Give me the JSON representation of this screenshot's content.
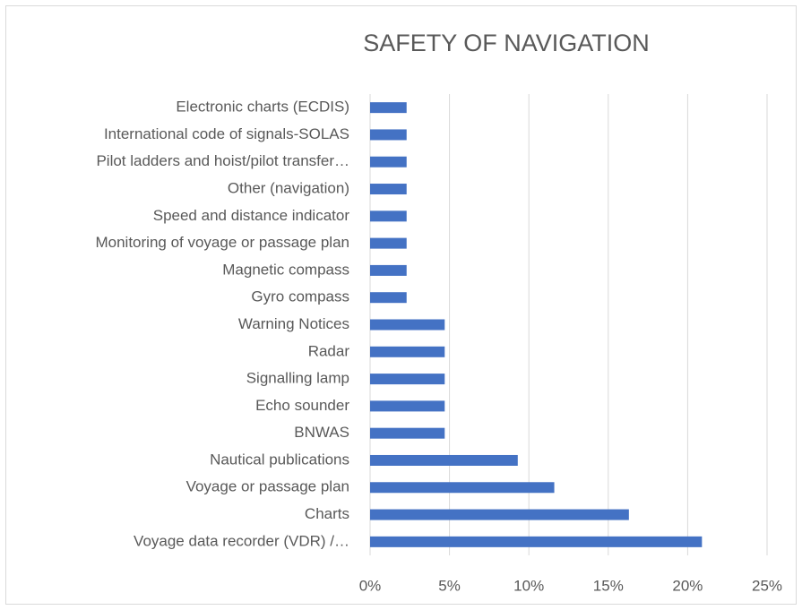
{
  "chart_data": {
    "type": "hbar",
    "title": "SAFETY OF NAVIGATION",
    "categories": [
      "Electronic charts (ECDIS)",
      "International code of signals-SOLAS",
      "Pilot ladders and hoist/pilot transfer…",
      "Other (navigation)",
      "Speed and distance indicator",
      "Monitoring of voyage or passage plan",
      "Magnetic compass",
      "Gyro compass",
      "Warning Notices",
      "Radar",
      "Signalling lamp",
      "Echo sounder",
      "BNWAS",
      "Nautical publications",
      "Voyage or passage plan",
      "Charts",
      "Voyage data recorder (VDR) /…"
    ],
    "values": [
      2.3,
      2.3,
      2.3,
      2.3,
      2.3,
      2.3,
      2.3,
      2.3,
      4.7,
      4.7,
      4.7,
      4.7,
      4.7,
      9.3,
      11.6,
      16.3,
      20.9
    ],
    "color": "#4472c4",
    "xlim": [
      0,
      25
    ],
    "xticks": [
      {
        "value": 0,
        "label": "0%"
      },
      {
        "value": 5,
        "label": "5%"
      },
      {
        "value": 10,
        "label": "10%"
      },
      {
        "value": 15,
        "label": "15%"
      },
      {
        "value": 20,
        "label": "20%"
      },
      {
        "value": 25,
        "label": "25%"
      }
    ],
    "grid": true
  }
}
